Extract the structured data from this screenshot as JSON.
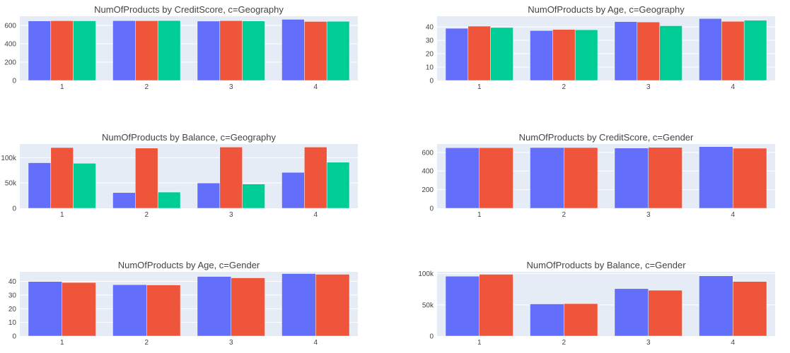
{
  "chart_data": [
    {
      "type": "bar",
      "title": "NumOfProducts by CreditScore, c=Geography",
      "categories": [
        "1",
        "2",
        "3",
        "4"
      ],
      "series": [
        {
          "color": "#636efa",
          "values": [
            649,
            652,
            647,
            666
          ]
        },
        {
          "color": "#ef553b",
          "values": [
            651,
            651,
            652,
            643
          ]
        },
        {
          "color": "#00cc96",
          "values": [
            650,
            653,
            648,
            645
          ]
        }
      ],
      "ylim": [
        0,
        700
      ],
      "yticks": [
        0,
        200,
        400,
        600
      ],
      "ytick_labels": [
        "0",
        "200",
        "400",
        "600"
      ],
      "grid": true,
      "xlabel": "",
      "ylabel": ""
    },
    {
      "type": "bar",
      "title": "NumOfProducts by Age, c=Geography",
      "categories": [
        "1",
        "2",
        "3",
        "4"
      ],
      "series": [
        {
          "color": "#636efa",
          "values": [
            39.0,
            37.3,
            44.0,
            46.3
          ]
        },
        {
          "color": "#ef553b",
          "values": [
            40.6,
            38.1,
            43.7,
            44.2
          ]
        },
        {
          "color": "#00cc96",
          "values": [
            39.6,
            37.9,
            40.9,
            45.0
          ]
        }
      ],
      "ylim": [
        0,
        48
      ],
      "yticks": [
        0,
        10,
        20,
        30,
        40
      ],
      "ytick_labels": [
        "0",
        "10",
        "20",
        "30",
        "40"
      ],
      "grid": true,
      "xlabel": "",
      "ylabel": ""
    },
    {
      "type": "bar",
      "title": "NumOfProducts by Balance, c=Geography",
      "categories": [
        "1",
        "2",
        "3",
        "4"
      ],
      "series": [
        {
          "color": "#636efa",
          "values": [
            90000,
            31000,
            50000,
            71000
          ]
        },
        {
          "color": "#ef553b",
          "values": [
            120000,
            119000,
            121000,
            121000
          ]
        },
        {
          "color": "#00cc96",
          "values": [
            89000,
            32000,
            48000,
            91000
          ]
        }
      ],
      "ylim": [
        0,
        127000
      ],
      "yticks": [
        0,
        50000,
        100000
      ],
      "ytick_labels": [
        "0",
        "50k",
        "100k"
      ],
      "grid": true,
      "xlabel": "",
      "ylabel": ""
    },
    {
      "type": "bar",
      "title": "NumOfProducts by CreditScore, c=Gender",
      "categories": [
        "1",
        "2",
        "3",
        "4"
      ],
      "series": [
        {
          "color": "#636efa",
          "values": [
            650,
            652,
            647,
            662
          ]
        },
        {
          "color": "#ef553b",
          "values": [
            651,
            652,
            654,
            645
          ]
        }
      ],
      "ylim": [
        0,
        690
      ],
      "yticks": [
        0,
        200,
        400,
        600
      ],
      "ytick_labels": [
        "0",
        "200",
        "400",
        "600"
      ],
      "grid": true,
      "xlabel": "",
      "ylabel": ""
    },
    {
      "type": "bar",
      "title": "NumOfProducts by Age, c=Gender",
      "categories": [
        "1",
        "2",
        "3",
        "4"
      ],
      "series": [
        {
          "color": "#636efa",
          "values": [
            39.9,
            37.6,
            43.6,
            45.7
          ]
        },
        {
          "color": "#ef553b",
          "values": [
            39.2,
            37.4,
            42.6,
            45.2
          ]
        }
      ],
      "ylim": [
        0,
        47
      ],
      "yticks": [
        0,
        10,
        20,
        30,
        40
      ],
      "ytick_labels": [
        "0",
        "10",
        "20",
        "30",
        "40"
      ],
      "grid": true,
      "xlabel": "",
      "ylabel": ""
    },
    {
      "type": "bar",
      "title": "NumOfProducts by Balance, c=Gender",
      "categories": [
        "1",
        "2",
        "3",
        "4"
      ],
      "series": [
        {
          "color": "#636efa",
          "values": [
            96000,
            51500,
            76000,
            96500
          ]
        },
        {
          "color": "#ef553b",
          "values": [
            99000,
            52000,
            73500,
            87500
          ]
        }
      ],
      "ylim": [
        0,
        103000
      ],
      "yticks": [
        0,
        50000,
        100000
      ],
      "ytick_labels": [
        "0",
        "50k",
        "100k"
      ],
      "grid": true,
      "xlabel": "",
      "ylabel": ""
    }
  ]
}
